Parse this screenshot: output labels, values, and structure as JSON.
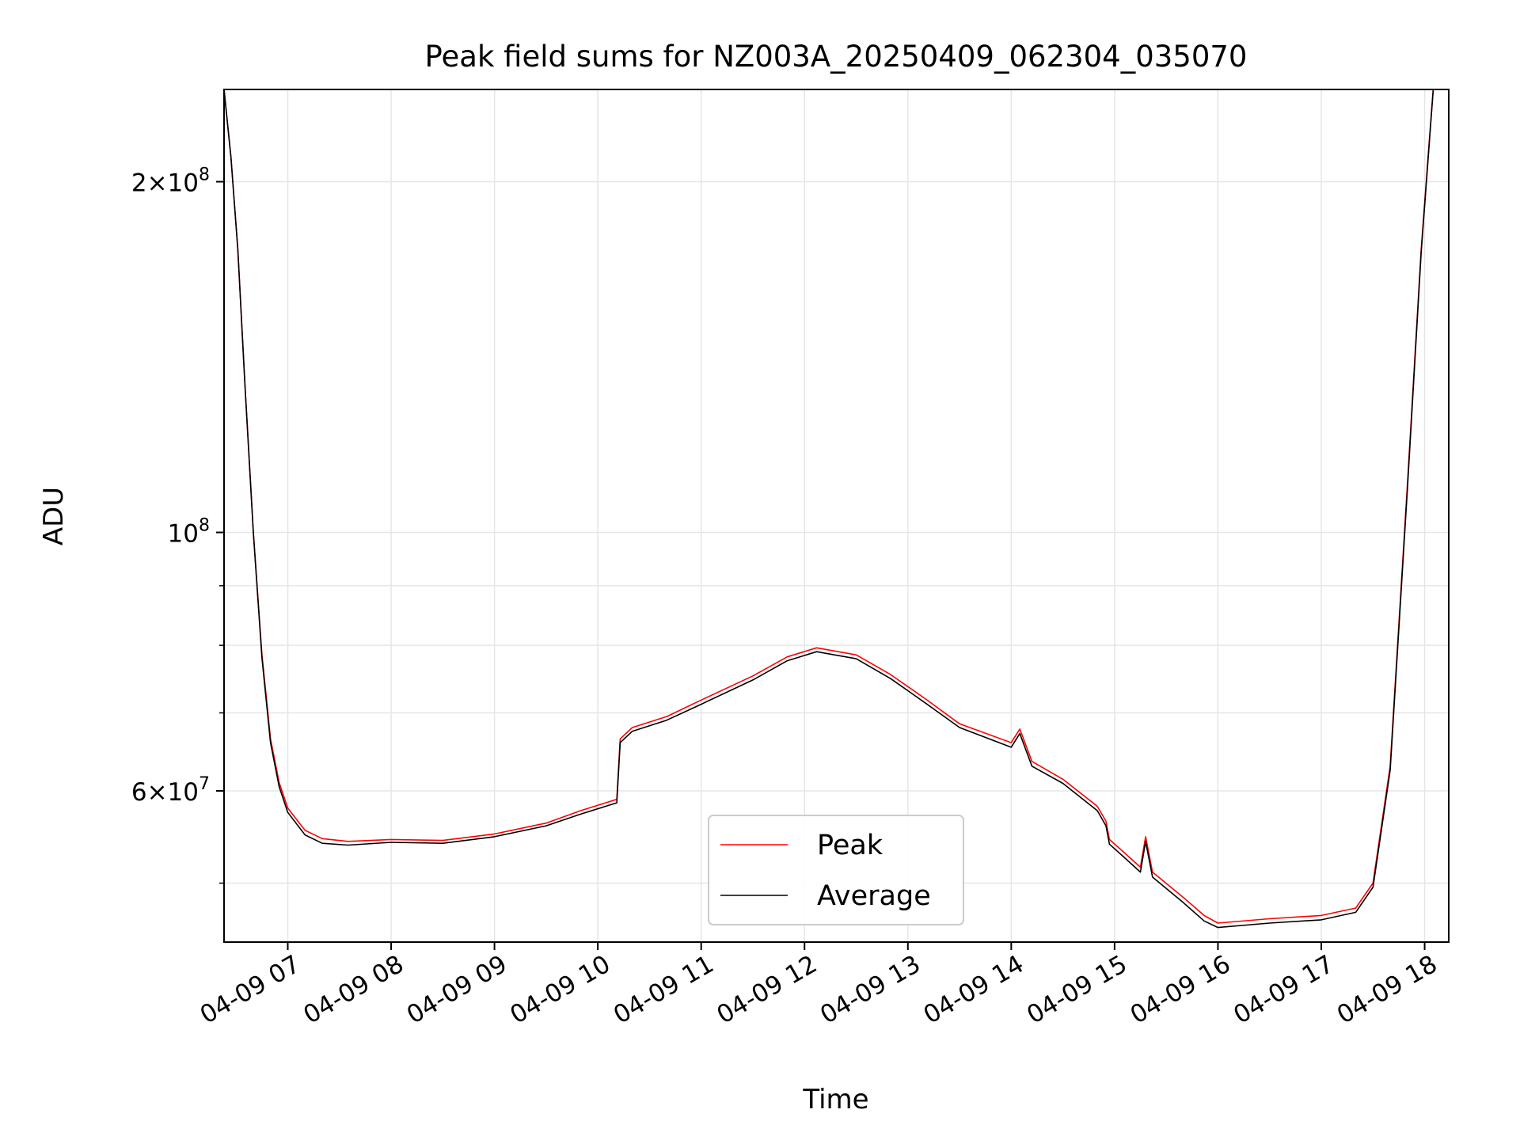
{
  "chart_data": {
    "type": "line",
    "title": "Peak field sums for NZ003A_20250409_062304_035070",
    "xlabel": "Time",
    "ylabel": "ADU",
    "xscale": "time",
    "yscale": "log",
    "xlim": [
      "2025-04-09 06:23",
      "2025-04-09 18:14"
    ],
    "ylim": [
      44500000,
      240000000
    ],
    "grid": true,
    "legend": {
      "position": "lower-center",
      "entries": [
        "Peak",
        "Average"
      ]
    },
    "x_ticks": [
      {
        "t": "2025-04-09 07:00",
        "label": "04-09 07"
      },
      {
        "t": "2025-04-09 08:00",
        "label": "04-09 08"
      },
      {
        "t": "2025-04-09 09:00",
        "label": "04-09 09"
      },
      {
        "t": "2025-04-09 10:00",
        "label": "04-09 10"
      },
      {
        "t": "2025-04-09 11:00",
        "label": "04-09 11"
      },
      {
        "t": "2025-04-09 12:00",
        "label": "04-09 12"
      },
      {
        "t": "2025-04-09 13:00",
        "label": "04-09 13"
      },
      {
        "t": "2025-04-09 14:00",
        "label": "04-09 14"
      },
      {
        "t": "2025-04-09 15:00",
        "label": "04-09 15"
      },
      {
        "t": "2025-04-09 16:00",
        "label": "04-09 16"
      },
      {
        "t": "2025-04-09 17:00",
        "label": "04-09 17"
      },
      {
        "t": "2025-04-09 18:00",
        "label": "04-09 18"
      }
    ],
    "y_major_ticks": [
      {
        "value": 60000000,
        "mantissa": "6",
        "exponent": "7"
      },
      {
        "value": 100000000,
        "mantissa": "",
        "exponent": "8"
      },
      {
        "value": 200000000,
        "mantissa": "2",
        "exponent": "8"
      }
    ],
    "y_minor_ticks": [
      50000000,
      70000000,
      80000000,
      90000000
    ],
    "series": [
      {
        "name": "Peak",
        "color": "#ff0000",
        "points": [
          [
            "2025-04-09 06:23",
            240000000
          ],
          [
            "2025-04-09 06:27",
            210000000
          ],
          [
            "2025-04-09 06:31",
            175000000
          ],
          [
            "2025-04-09 06:35",
            135000000
          ],
          [
            "2025-04-09 06:40",
            100000000
          ],
          [
            "2025-04-09 06:45",
            78500000
          ],
          [
            "2025-04-09 06:50",
            66500000
          ],
          [
            "2025-04-09 06:55",
            61000000
          ],
          [
            "2025-04-09 07:00",
            58000000
          ],
          [
            "2025-04-09 07:10",
            55500000
          ],
          [
            "2025-04-09 07:20",
            54600000
          ],
          [
            "2025-04-09 07:35",
            54300000
          ],
          [
            "2025-04-09 08:00",
            54500000
          ],
          [
            "2025-04-09 08:30",
            54400000
          ],
          [
            "2025-04-09 09:00",
            55100000
          ],
          [
            "2025-04-09 09:30",
            56300000
          ],
          [
            "2025-04-09 09:50",
            57700000
          ],
          [
            "2025-04-09 10:11",
            59000000
          ],
          [
            "2025-04-09 10:13",
            66500000
          ],
          [
            "2025-04-09 10:20",
            68000000
          ],
          [
            "2025-04-09 10:40",
            69500000
          ],
          [
            "2025-04-09 11:00",
            71800000
          ],
          [
            "2025-04-09 11:30",
            75300000
          ],
          [
            "2025-04-09 11:50",
            78200000
          ],
          [
            "2025-04-09 12:07",
            79600000
          ],
          [
            "2025-04-09 12:30",
            78500000
          ],
          [
            "2025-04-09 12:50",
            75500000
          ],
          [
            "2025-04-09 13:10",
            72000000
          ],
          [
            "2025-04-09 13:30",
            68500000
          ],
          [
            "2025-04-09 14:00",
            66000000
          ],
          [
            "2025-04-09 14:05",
            67800000
          ],
          [
            "2025-04-09 14:12",
            63600000
          ],
          [
            "2025-04-09 14:30",
            61400000
          ],
          [
            "2025-04-09 14:50",
            58200000
          ],
          [
            "2025-04-09 14:55",
            56500000
          ],
          [
            "2025-04-09 14:57",
            54500000
          ],
          [
            "2025-04-09 15:05",
            53200000
          ],
          [
            "2025-04-09 15:15",
            51600000
          ],
          [
            "2025-04-09 15:18",
            54800000
          ],
          [
            "2025-04-09 15:22",
            51100000
          ],
          [
            "2025-04-09 15:40",
            48600000
          ],
          [
            "2025-04-09 15:52",
            46900000
          ],
          [
            "2025-04-09 16:00",
            46200000
          ],
          [
            "2025-04-09 16:30",
            46600000
          ],
          [
            "2025-04-09 17:00",
            46900000
          ],
          [
            "2025-04-09 17:20",
            47600000
          ],
          [
            "2025-04-09 17:30",
            50000000
          ],
          [
            "2025-04-09 17:40",
            63000000
          ],
          [
            "2025-04-09 17:50",
            110000000
          ],
          [
            "2025-04-09 17:58",
            175000000
          ],
          [
            "2025-04-09 18:03",
            220000000
          ],
          [
            "2025-04-09 18:05",
            240000000
          ]
        ]
      },
      {
        "name": "Average",
        "color": "#000000",
        "points": [
          [
            "2025-04-09 06:23",
            240000000
          ],
          [
            "2025-04-09 06:27",
            210000000
          ],
          [
            "2025-04-09 06:31",
            175000000
          ],
          [
            "2025-04-09 06:35",
            135000000
          ],
          [
            "2025-04-09 06:40",
            100000000
          ],
          [
            "2025-04-09 06:45",
            78000000
          ],
          [
            "2025-04-09 06:50",
            66000000
          ],
          [
            "2025-04-09 06:55",
            60500000
          ],
          [
            "2025-04-09 07:00",
            57500000
          ],
          [
            "2025-04-09 07:10",
            55000000
          ],
          [
            "2025-04-09 07:20",
            54100000
          ],
          [
            "2025-04-09 07:35",
            53900000
          ],
          [
            "2025-04-09 08:00",
            54200000
          ],
          [
            "2025-04-09 08:30",
            54100000
          ],
          [
            "2025-04-09 09:00",
            54800000
          ],
          [
            "2025-04-09 09:30",
            56000000
          ],
          [
            "2025-04-09 09:50",
            57300000
          ],
          [
            "2025-04-09 10:11",
            58600000
          ],
          [
            "2025-04-09 10:13",
            66000000
          ],
          [
            "2025-04-09 10:20",
            67500000
          ],
          [
            "2025-04-09 10:40",
            69000000
          ],
          [
            "2025-04-09 11:00",
            71200000
          ],
          [
            "2025-04-09 11:30",
            74700000
          ],
          [
            "2025-04-09 11:50",
            77600000
          ],
          [
            "2025-04-09 12:07",
            79000000
          ],
          [
            "2025-04-09 12:30",
            77900000
          ],
          [
            "2025-04-09 12:50",
            74900000
          ],
          [
            "2025-04-09 13:10",
            71400000
          ],
          [
            "2025-04-09 13:30",
            68000000
          ],
          [
            "2025-04-09 14:00",
            65400000
          ],
          [
            "2025-04-09 14:05",
            67200000
          ],
          [
            "2025-04-09 14:12",
            63000000
          ],
          [
            "2025-04-09 14:30",
            60900000
          ],
          [
            "2025-04-09 14:50",
            57700000
          ],
          [
            "2025-04-09 14:55",
            56000000
          ],
          [
            "2025-04-09 14:57",
            54000000
          ],
          [
            "2025-04-09 15:05",
            52700000
          ],
          [
            "2025-04-09 15:15",
            51100000
          ],
          [
            "2025-04-09 15:18",
            54300000
          ],
          [
            "2025-04-09 15:22",
            50600000
          ],
          [
            "2025-04-09 15:40",
            48100000
          ],
          [
            "2025-04-09 15:52",
            46400000
          ],
          [
            "2025-04-09 16:00",
            45800000
          ],
          [
            "2025-04-09 16:30",
            46200000
          ],
          [
            "2025-04-09 17:00",
            46500000
          ],
          [
            "2025-04-09 17:20",
            47200000
          ],
          [
            "2025-04-09 17:30",
            49600000
          ],
          [
            "2025-04-09 17:40",
            62500000
          ],
          [
            "2025-04-09 17:50",
            109000000
          ],
          [
            "2025-04-09 17:58",
            174000000
          ],
          [
            "2025-04-09 18:03",
            219000000
          ],
          [
            "2025-04-09 18:05",
            240000000
          ]
        ]
      }
    ]
  }
}
